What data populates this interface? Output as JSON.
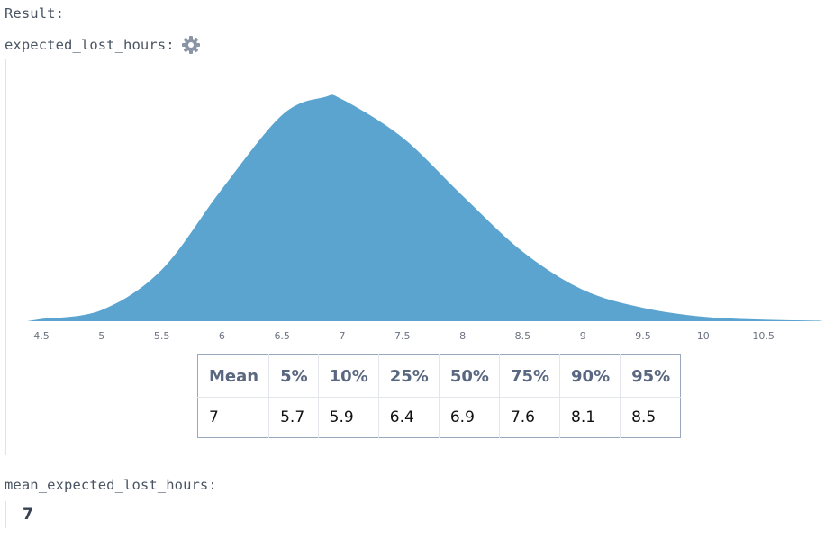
{
  "result_label": "Result:",
  "variable": {
    "name": "expected_lost_hours:",
    "settings_icon": "gear-icon"
  },
  "chart_data": {
    "type": "area",
    "distribution": "density",
    "fill_color": "#5ba4cf",
    "xlim": [
      4.4,
      11.0
    ],
    "x_ticks": [
      "4.5",
      "5",
      "5.5",
      "6",
      "6.5",
      "7",
      "7.5",
      "8",
      "8.5",
      "9",
      "9.5",
      "10",
      "10.5"
    ],
    "x": [
      4.5,
      5.0,
      5.5,
      6.0,
      6.5,
      6.85,
      7.0,
      7.5,
      8.0,
      8.5,
      9.0,
      9.5,
      10.0,
      10.5,
      11.0
    ],
    "y": [
      0.01,
      0.05,
      0.23,
      0.59,
      0.92,
      1.0,
      0.99,
      0.82,
      0.56,
      0.31,
      0.14,
      0.06,
      0.02,
      0.007,
      0.002
    ],
    "grid": false,
    "legend": "none"
  },
  "stats_table": {
    "headers": [
      "Mean",
      "5%",
      "10%",
      "25%",
      "50%",
      "75%",
      "90%",
      "95%"
    ],
    "values": [
      "7",
      "5.7",
      "5.9",
      "6.4",
      "6.9",
      "7.6",
      "8.1",
      "8.5"
    ]
  },
  "mean_section": {
    "label": "mean_expected_lost_hours:",
    "value": "7"
  }
}
